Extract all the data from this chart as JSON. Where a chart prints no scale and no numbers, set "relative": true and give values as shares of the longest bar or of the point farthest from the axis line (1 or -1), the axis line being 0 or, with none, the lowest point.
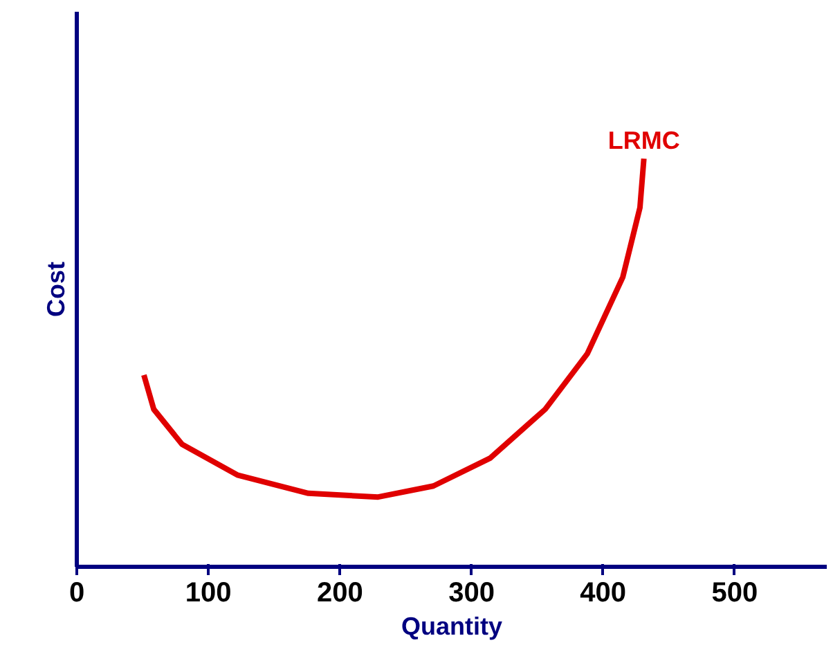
{
  "chart_data": {
    "type": "line",
    "xlabel": "Quantity",
    "ylabel": "Cost",
    "relative": true,
    "xlim": [
      0,
      570
    ],
    "xticks": [
      0,
      100,
      200,
      300,
      400,
      500
    ],
    "grid": false,
    "marker": "none",
    "line_style": "solid",
    "series": [
      {
        "name": "LRMC",
        "color": "#e00000",
        "x": [
          51,
          58.5,
          80,
          122,
          176,
          229,
          271,
          314,
          356,
          388,
          415,
          428,
          431
        ],
        "values": [
          0.47,
          0.386,
          0.3,
          0.225,
          0.18,
          0.171,
          0.198,
          0.266,
          0.386,
          0.522,
          0.71,
          0.88,
          1.0
        ]
      }
    ]
  }
}
